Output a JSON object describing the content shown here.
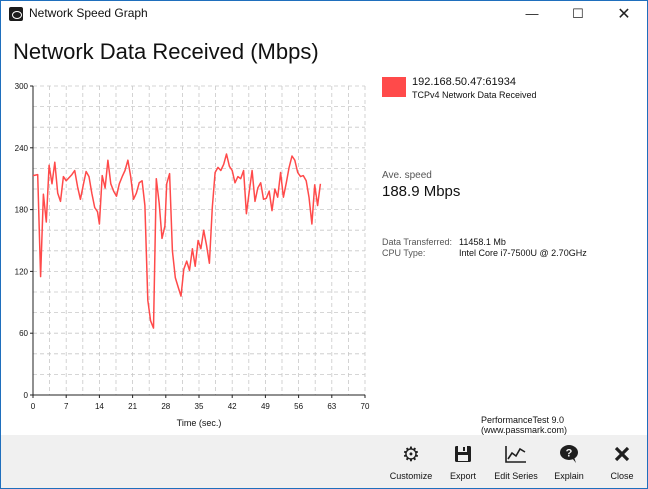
{
  "window": {
    "title": "Network Speed Graph",
    "minimize": "—",
    "maximize": "☐",
    "close": "✕"
  },
  "page": {
    "title": "Network Data Received (Mbps)"
  },
  "legend": {
    "ip": "192.168.50.47:61934",
    "series": "TCPv4 Network Data Received",
    "color": "#ff4a4a"
  },
  "stats": {
    "ave_label": "Ave. speed",
    "ave_value": "188.9 Mbps",
    "transferred_label": "Data Transferred:",
    "transferred_value": "11458.1 Mb",
    "cpu_label": "CPU Type:",
    "cpu_value": "Intel Core i7-7500U @ 2.70GHz"
  },
  "credit": "PerformanceTest 9.0 (www.passmark.com)",
  "toolbar": [
    {
      "label": "Customize",
      "icon": "gears-icon"
    },
    {
      "label": "Export",
      "icon": "floppy-disk-icon"
    },
    {
      "label": "Edit Series",
      "icon": "line-chart-icon"
    },
    {
      "label": "Explain",
      "icon": "question-chat-icon"
    },
    {
      "label": "Close",
      "icon": "close-x-icon"
    }
  ],
  "chart_data": {
    "type": "line",
    "title": "",
    "xlabel": "Time (sec.)",
    "ylabel": "",
    "xlim": [
      0,
      70
    ],
    "ylim": [
      0,
      300
    ],
    "xticks": [
      0,
      7,
      14,
      21,
      28,
      35,
      42,
      49,
      56,
      63,
      70
    ],
    "yticks": [
      0,
      60,
      120,
      180,
      240,
      300
    ],
    "grid": true,
    "legend": "right",
    "series": [
      {
        "name": "TCPv4 Network Data Received",
        "color": "#ff4a4a",
        "x": [
          0,
          1,
          1.6,
          2.2,
          2.8,
          3.4,
          4,
          4.6,
          5.2,
          5.8,
          6.4,
          7,
          7.6,
          8.2,
          8.8,
          9.4,
          10,
          10.6,
          11.2,
          11.8,
          12.4,
          13,
          13.6,
          14,
          14.6,
          15.2,
          15.8,
          16.4,
          17,
          17.6,
          18.2,
          18.8,
          19.4,
          20,
          20.6,
          21.2,
          21.8,
          22.4,
          23,
          23.6,
          24.2,
          24.8,
          25.4,
          26,
          26.6,
          27.2,
          27.8,
          28.2,
          28.8,
          29.4,
          30,
          30.6,
          31.2,
          31.8,
          32.4,
          33,
          33.6,
          34.2,
          34.8,
          35.4,
          36,
          36.6,
          37.2,
          37.8,
          38.4,
          39,
          39.6,
          40.2,
          40.8,
          41.4,
          42,
          42.6,
          43.2,
          43.8,
          44.4,
          45,
          45.6,
          46.2,
          46.8,
          47.4,
          48,
          48.6,
          49.2,
          49.8,
          50.4,
          51,
          51.6,
          52.2,
          52.8,
          53.4,
          54,
          54.6,
          55.2,
          55.8,
          56.4,
          57,
          57.6,
          58.2,
          58.8,
          59.4,
          60,
          60.6
        ],
        "values": [
          213,
          214,
          115,
          195,
          168,
          223,
          205,
          226,
          196,
          188,
          212,
          208,
          211,
          214,
          218,
          202,
          190,
          204,
          217,
          212,
          196,
          182,
          178,
          166,
          213,
          201,
          228,
          205,
          198,
          193,
          205,
          212,
          218,
          228,
          212,
          190,
          196,
          206,
          208,
          184,
          92,
          72,
          65,
          210,
          186,
          152,
          164,
          205,
          215,
          140,
          114,
          105,
          96,
          122,
          130,
          121,
          142,
          125,
          150,
          142,
          160,
          145,
          128,
          182,
          216,
          221,
          218,
          224,
          234,
          222,
          218,
          206,
          212,
          210,
          218,
          176,
          198,
          218,
          188,
          201,
          206,
          190,
          191,
          198,
          179,
          200,
          192,
          216,
          192,
          206,
          221,
          232,
          228,
          216,
          212,
          213,
          208,
          192,
          166,
          204,
          184,
          205
        ]
      }
    ]
  }
}
